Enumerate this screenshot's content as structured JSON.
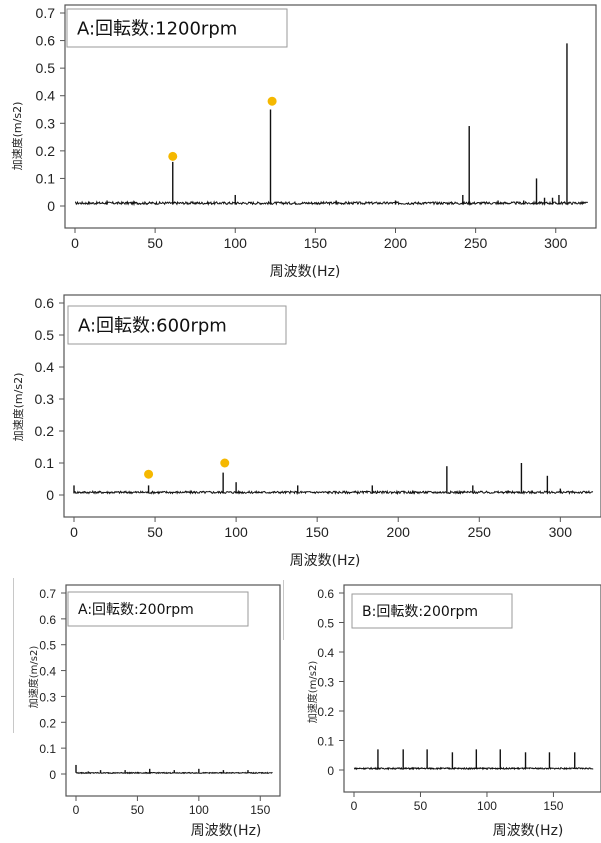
{
  "chart_data": [
    {
      "type": "line",
      "title": "A:回転数:1200rpm",
      "xlabel": "周波数(Hz)",
      "ylabel": "加速度(m/s2)",
      "xlim": [
        0,
        320
      ],
      "ylim": [
        0,
        0.7
      ],
      "xticks": [
        0,
        50,
        100,
        150,
        200,
        250,
        300
      ],
      "yticks": [
        0,
        0.1,
        0.2,
        0.3,
        0.4,
        0.5,
        0.6,
        0.7
      ],
      "ytick_labels": [
        "0",
        "0.1",
        "0.2",
        "0.3",
        "0.4",
        "0.5",
        "0.6",
        "0.7"
      ],
      "noise_level": 0.01,
      "peaks": [
        {
          "x": 61,
          "y": 0.16
        },
        {
          "x": 122,
          "y": 0.35
        },
        {
          "x": 20,
          "y": 0.02
        },
        {
          "x": 100,
          "y": 0.04
        },
        {
          "x": 163,
          "y": 0.02
        },
        {
          "x": 200,
          "y": 0.02
        },
        {
          "x": 242,
          "y": 0.04
        },
        {
          "x": 246,
          "y": 0.29
        },
        {
          "x": 264,
          "y": 0.02
        },
        {
          "x": 280,
          "y": 0.02
        },
        {
          "x": 288,
          "y": 0.1
        },
        {
          "x": 293,
          "y": 0.03
        },
        {
          "x": 298,
          "y": 0.03
        },
        {
          "x": 302,
          "y": 0.04
        },
        {
          "x": 307,
          "y": 0.59
        }
      ],
      "markers": [
        {
          "x": 61,
          "y": 0.18
        },
        {
          "x": 123,
          "y": 0.38
        }
      ],
      "colors": {
        "line": "#111111",
        "marker": "#F5B800",
        "axis": "#555555"
      }
    },
    {
      "type": "line",
      "title": "A:回転数:600rpm",
      "xlabel": "周波数(Hz)",
      "ylabel": "加速度(m/s2)",
      "xlim": [
        0,
        320
      ],
      "ylim": [
        0,
        0.6
      ],
      "xticks": [
        0,
        50,
        100,
        150,
        200,
        250,
        300
      ],
      "yticks": [
        0,
        0.1,
        0.2,
        0.3,
        0.4,
        0.5,
        0.6
      ],
      "ytick_labels": [
        "0",
        "0.1",
        "0.2",
        "0.3",
        "0.4",
        "0.5",
        "0.6"
      ],
      "noise_level": 0.008,
      "peaks": [
        {
          "x": 0,
          "y": 0.03
        },
        {
          "x": 46,
          "y": 0.03
        },
        {
          "x": 92,
          "y": 0.07
        },
        {
          "x": 100,
          "y": 0.04
        },
        {
          "x": 138,
          "y": 0.03
        },
        {
          "x": 184,
          "y": 0.03
        },
        {
          "x": 230,
          "y": 0.09
        },
        {
          "x": 246,
          "y": 0.03
        },
        {
          "x": 276,
          "y": 0.1
        },
        {
          "x": 292,
          "y": 0.06
        },
        {
          "x": 300,
          "y": 0.02
        }
      ],
      "markers": [
        {
          "x": 46,
          "y": 0.065
        },
        {
          "x": 93,
          "y": 0.1
        }
      ],
      "colors": {
        "line": "#111111",
        "marker": "#F5B800",
        "axis": "#555555"
      }
    },
    {
      "type": "line",
      "title": "A:回転数:200rpm",
      "xlabel": "周波数(Hz)",
      "ylabel": "加速度(m/s2)",
      "xlim": [
        0,
        160
      ],
      "ylim": [
        0,
        0.7
      ],
      "xticks": [
        0,
        50,
        100,
        150
      ],
      "yticks": [
        0,
        0.1,
        0.2,
        0.3,
        0.4,
        0.5,
        0.6,
        0.7
      ],
      "ytick_labels": [
        "0",
        "0.1",
        "0.2",
        "0.3",
        "0.4",
        "0.5",
        "0.6",
        "0.7"
      ],
      "noise_level": 0.004,
      "peaks": [
        {
          "x": 0,
          "y": 0.035
        },
        {
          "x": 10,
          "y": 0.01
        },
        {
          "x": 20,
          "y": 0.015
        },
        {
          "x": 40,
          "y": 0.015
        },
        {
          "x": 60,
          "y": 0.02
        },
        {
          "x": 80,
          "y": 0.015
        },
        {
          "x": 100,
          "y": 0.02
        },
        {
          "x": 120,
          "y": 0.015
        },
        {
          "x": 140,
          "y": 0.015
        }
      ],
      "markers": [],
      "colors": {
        "line": "#111111",
        "marker": "#F5B800",
        "axis": "#555555"
      }
    },
    {
      "type": "line",
      "title": "B:回転数:200rpm",
      "xlabel": "周波数(Hz)",
      "ylabel": "加速度(m/s2)",
      "xlim": [
        0,
        180
      ],
      "ylim": [
        0,
        0.6
      ],
      "xticks": [
        0,
        50,
        100,
        150
      ],
      "yticks": [
        0,
        0.1,
        0.2,
        0.3,
        0.4,
        0.5,
        0.6
      ],
      "ytick_labels": [
        "0",
        "0.1",
        "0.2",
        "0.3",
        "0.4",
        "0.5",
        "0.6"
      ],
      "noise_level": 0.005,
      "peaks": [
        {
          "x": 18,
          "y": 0.07
        },
        {
          "x": 37,
          "y": 0.07
        },
        {
          "x": 55,
          "y": 0.07
        },
        {
          "x": 74,
          "y": 0.06
        },
        {
          "x": 92,
          "y": 0.07
        },
        {
          "x": 110,
          "y": 0.07
        },
        {
          "x": 129,
          "y": 0.06
        },
        {
          "x": 147,
          "y": 0.06
        },
        {
          "x": 166,
          "y": 0.06
        }
      ],
      "markers": [],
      "colors": {
        "line": "#111111",
        "marker": "#F5B800",
        "axis": "#555555"
      }
    }
  ]
}
